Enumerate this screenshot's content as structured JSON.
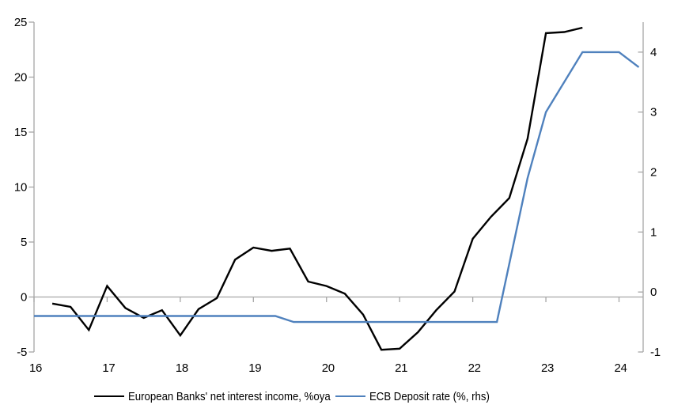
{
  "chart_data": {
    "type": "line",
    "title": "",
    "x_axis": {
      "min": 16,
      "max": 24.33,
      "ticks": [
        16,
        17,
        18,
        19,
        20,
        21,
        22,
        23,
        24
      ]
    },
    "y_left": {
      "min": -5,
      "max": 25,
      "ticks": [
        -5,
        0,
        5,
        10,
        15,
        20,
        25
      ]
    },
    "y_right": {
      "min": -1,
      "max": 4.5,
      "ticks": [
        -1,
        0,
        1,
        2,
        3,
        4
      ]
    },
    "grid": "zero-line-only",
    "axis_color": "#a6a6a6",
    "series": [
      {
        "id": "banks-nii",
        "name": "European Banks' net interest income, %oya",
        "axis": "left",
        "color": "#000000",
        "points": [
          [
            16.25,
            -0.6
          ],
          [
            16.5,
            -0.9
          ],
          [
            16.75,
            -3.0
          ],
          [
            17.0,
            1.0
          ],
          [
            17.25,
            -1.0
          ],
          [
            17.5,
            -1.9
          ],
          [
            17.75,
            -1.2
          ],
          [
            18.0,
            -3.5
          ],
          [
            18.25,
            -1.1
          ],
          [
            18.5,
            -0.1
          ],
          [
            18.75,
            3.4
          ],
          [
            19.0,
            4.5
          ],
          [
            19.25,
            4.2
          ],
          [
            19.5,
            4.4
          ],
          [
            19.75,
            1.4
          ],
          [
            20.0,
            1.0
          ],
          [
            20.25,
            0.3
          ],
          [
            20.5,
            -1.6
          ],
          [
            20.75,
            -4.8
          ],
          [
            21.0,
            -4.7
          ],
          [
            21.25,
            -3.2
          ],
          [
            21.5,
            -1.2
          ],
          [
            21.75,
            0.5
          ],
          [
            22.0,
            5.3
          ],
          [
            22.25,
            7.3
          ],
          [
            22.5,
            9.0
          ],
          [
            22.75,
            14.4
          ],
          [
            23.0,
            24.0
          ],
          [
            23.25,
            24.1
          ],
          [
            23.5,
            24.5
          ]
        ]
      },
      {
        "id": "ecb-deposit-rate",
        "name": "ECB Deposit rate (%, rhs)",
        "axis": "right",
        "color": "#4f81bd",
        "points": [
          [
            16.0,
            -0.4
          ],
          [
            19.3,
            -0.4
          ],
          [
            19.55,
            -0.5
          ],
          [
            22.33,
            -0.5
          ],
          [
            22.75,
            1.9
          ],
          [
            23.0,
            3.0
          ],
          [
            23.5,
            4.0
          ],
          [
            24.0,
            4.0
          ],
          [
            24.27,
            3.75
          ]
        ]
      }
    ],
    "legend": [
      {
        "label": "European Banks' net interest income, %oya",
        "color": "#000000"
      },
      {
        "label": "ECB Deposit rate (%, rhs)",
        "color": "#4f81bd"
      }
    ],
    "legend_position": "bottom"
  }
}
